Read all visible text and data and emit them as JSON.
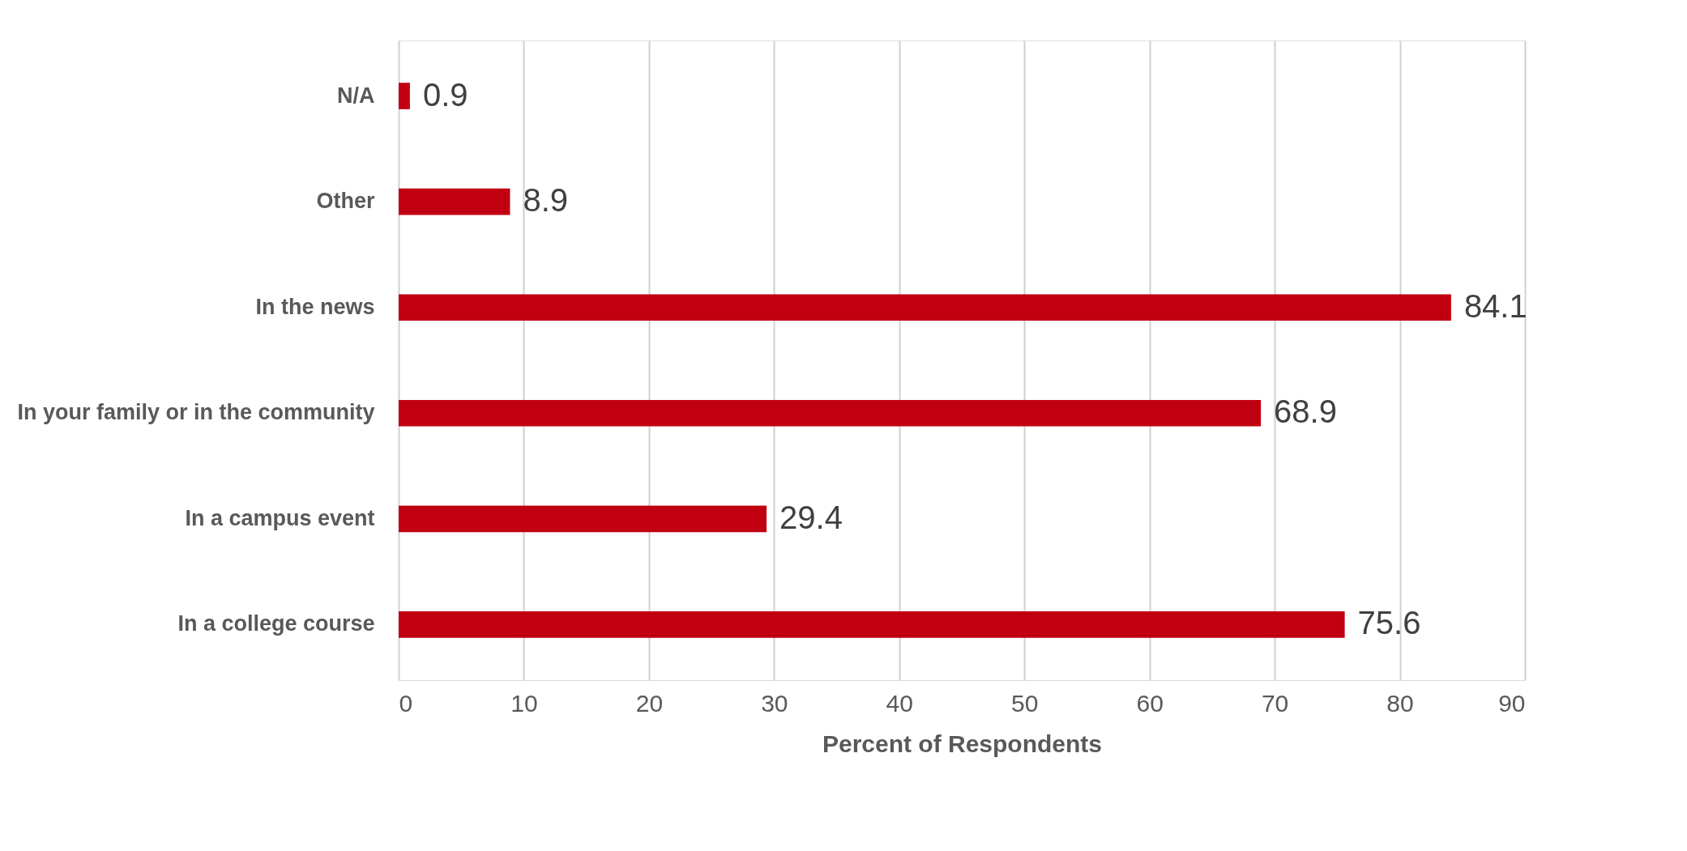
{
  "chart_data": {
    "type": "bar",
    "orientation": "horizontal",
    "xlabel": "Percent of Respondents",
    "categories": [
      "N/A",
      "Other",
      "In the news",
      "In your family or in the community",
      "In a campus event",
      "In a college course"
    ],
    "values": [
      0.9,
      8.9,
      84.1,
      68.9,
      29.4,
      75.6
    ],
    "color": "#c00010",
    "xlim": [
      0,
      90
    ],
    "xticks": [
      0,
      10,
      20,
      30,
      40,
      50,
      60,
      70,
      80,
      90
    ],
    "grid": "x",
    "data_labels": true
  }
}
